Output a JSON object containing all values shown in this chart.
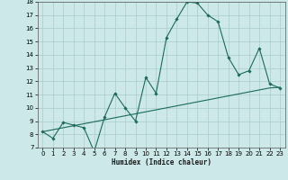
{
  "xlabel": "Humidex (Indice chaleur)",
  "background_color": "#cce8e8",
  "grid_color": "#aacccc",
  "line_color": "#1a6b5a",
  "xlim": [
    -0.5,
    23.5
  ],
  "ylim": [
    7,
    18
  ],
  "xticks": [
    0,
    1,
    2,
    3,
    4,
    5,
    6,
    7,
    8,
    9,
    10,
    11,
    12,
    13,
    14,
    15,
    16,
    17,
    18,
    19,
    20,
    21,
    22,
    23
  ],
  "yticks": [
    7,
    8,
    9,
    10,
    11,
    12,
    13,
    14,
    15,
    16,
    17,
    18
  ],
  "series1_x": [
    0,
    1,
    2,
    3,
    4,
    5,
    6,
    7,
    8,
    9,
    10,
    11,
    12,
    13,
    14,
    15,
    16,
    17,
    18,
    19,
    20,
    21,
    22,
    23
  ],
  "series1_y": [
    8.2,
    7.7,
    8.9,
    8.7,
    8.5,
    6.7,
    9.3,
    11.1,
    10.0,
    9.0,
    12.3,
    11.1,
    15.3,
    16.7,
    18.0,
    17.9,
    17.0,
    16.5,
    13.8,
    12.5,
    12.8,
    14.5,
    11.8,
    11.5
  ],
  "series2_x": [
    0,
    1,
    2,
    3,
    4,
    5,
    6,
    7,
    8,
    9,
    10,
    11,
    12,
    13,
    14,
    15,
    16,
    17,
    18,
    19,
    20,
    21,
    22,
    23
  ],
  "series2_y": [
    8.2,
    8.35,
    8.5,
    8.65,
    8.8,
    8.95,
    9.1,
    9.25,
    9.4,
    9.55,
    9.7,
    9.85,
    10.0,
    10.15,
    10.3,
    10.45,
    10.6,
    10.75,
    10.9,
    11.05,
    11.2,
    11.35,
    11.5,
    11.55
  ]
}
